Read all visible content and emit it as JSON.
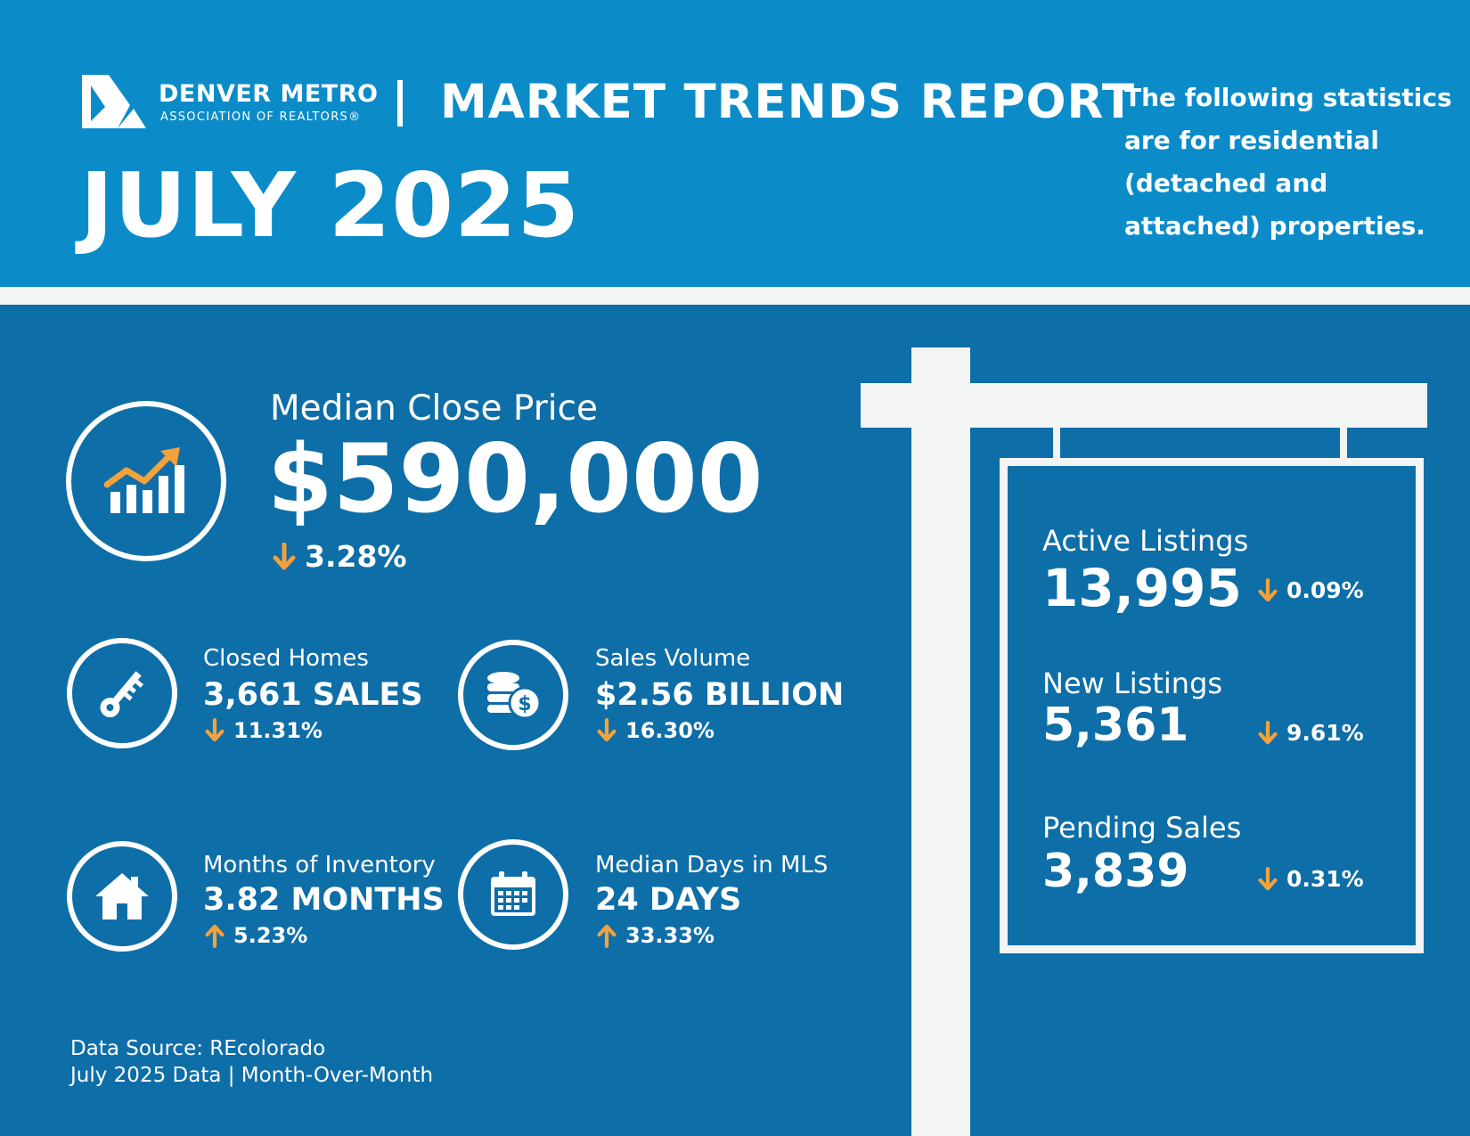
{
  "header": {
    "logo_line1": "DENVER METRO",
    "logo_line2": "ASSOCIATION OF REALTORS®",
    "report_title": "MARKET TRENDS REPORT",
    "month": "JULY 2025",
    "note": "The following statistics are for residential (detached and attached) properties."
  },
  "median_close_price": {
    "label": "Median Close Price",
    "value": "$590,000",
    "change": "3.28%",
    "direction": "down"
  },
  "stats": [
    {
      "label": "Closed Homes",
      "value": "3,661 SALES",
      "change": "11.31%",
      "direction": "down",
      "icon": "key-icon"
    },
    {
      "label": "Sales Volume",
      "value": "$2.56 BILLION",
      "change": "16.30%",
      "direction": "down",
      "icon": "coins-dollar-icon"
    },
    {
      "label": "Months of Inventory",
      "value": "3.82 MONTHS",
      "change": "5.23%",
      "direction": "up",
      "icon": "house-icon"
    },
    {
      "label": "Median Days in MLS",
      "value": "24 DAYS",
      "change": "33.33%",
      "direction": "up",
      "icon": "calendar-icon"
    }
  ],
  "sign": {
    "active_listings": {
      "label": "Active Listings",
      "value": "13,995",
      "change": "0.09%",
      "direction": "down"
    },
    "new_listings": {
      "label": "New Listings",
      "value": "5,361",
      "change": "9.61%",
      "direction": "down"
    },
    "pending_sales": {
      "label": "Pending Sales",
      "value": "3,839",
      "change": "0.31%",
      "direction": "down"
    }
  },
  "footnote": {
    "line1": "Data Source: REcolorado",
    "line2": "July 2025 Data | Month-Over-Month"
  },
  "colors": {
    "header_blue": "#0b8cc9",
    "main_blue": "#0e6ea8",
    "accent_orange": "#f2a13b",
    "white": "#ffffff",
    "off_white": "#f3f4f4"
  }
}
